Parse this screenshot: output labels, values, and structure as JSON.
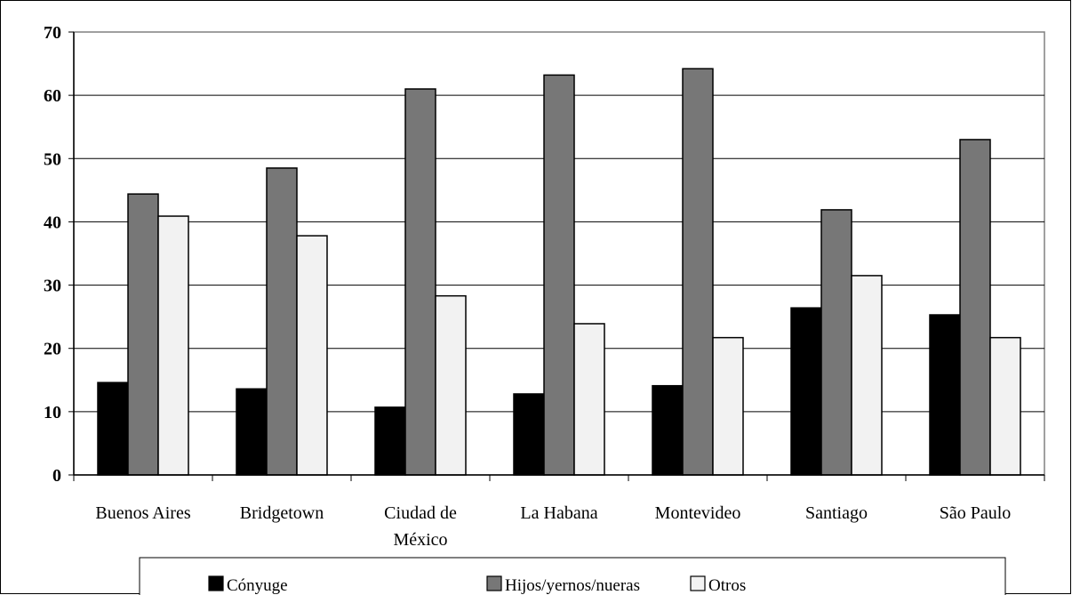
{
  "chart_data": {
    "type": "bar",
    "title": "",
    "xlabel": "",
    "ylabel": "",
    "ylim": [
      0,
      70
    ],
    "yticks": [
      0,
      10,
      20,
      30,
      40,
      50,
      60,
      70
    ],
    "grid": true,
    "legend_position": "bottom",
    "categories": [
      [
        "Buenos Aires"
      ],
      [
        "Bridgetown"
      ],
      [
        "Ciudad de",
        "México"
      ],
      [
        "La Habana"
      ],
      [
        "Montevideo"
      ],
      [
        "Santiago"
      ],
      [
        "São Paulo"
      ]
    ],
    "series": [
      {
        "name": "Cónyuge",
        "color": "#000000",
        "values": [
          14.6,
          13.6,
          10.7,
          12.8,
          14.1,
          26.4,
          25.3
        ]
      },
      {
        "name": "Hijos/yernos/nueras",
        "color": "#777777",
        "values": [
          44.4,
          48.5,
          61.0,
          63.2,
          64.2,
          41.9,
          53.0
        ]
      },
      {
        "name": "Otros",
        "color": "#f2f2f2",
        "values": [
          40.9,
          37.8,
          28.3,
          23.9,
          21.7,
          31.5,
          21.7
        ]
      }
    ]
  }
}
